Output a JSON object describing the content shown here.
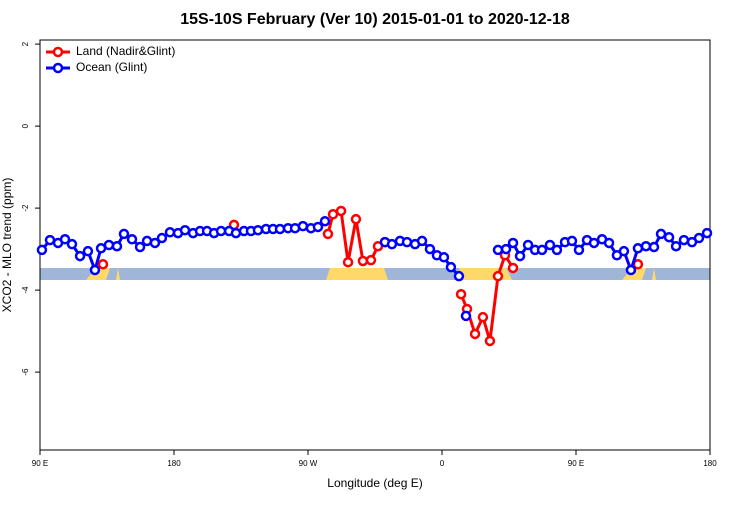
{
  "chart_data": {
    "type": "line",
    "title": "15S-10S February (Ver 10)   2015-01-01 to 2020-12-18",
    "x_label": "Longitude (deg E)",
    "y_label": "XCO2 - MLO trend (ppm)",
    "xlim": [
      90,
      540
    ],
    "ylim": [
      -7.9,
      2.1
    ],
    "xticks": [
      {
        "value": 90,
        "label": "90 E"
      },
      180,
      {
        "value": 270,
        "label": "90 W"
      },
      0,
      {
        "value": 450,
        "label": "90 E"
      },
      {
        "value": 540,
        "label": "180"
      }
    ],
    "yticks": [
      2,
      0,
      -2,
      -4,
      -6
    ],
    "legend": "top-left",
    "series": [
      {
        "name": "Land (Nadir&Glint)",
        "color": "#ff0000",
        "x": [
          132.3,
          null,
          220.3,
          null,
          283.4,
          286.8,
          292.2,
          296.9,
          302.2,
          306.9,
          312.3,
          317.0,
          321.7,
          null,
          372.8,
          376.8,
          382.2,
          387.5,
          392.2,
          397.6,
          402.3,
          407.7,
          null,
          491.6
        ],
        "values": [
          -3.37,
          null,
          -2.41,
          null,
          -2.63,
          -2.15,
          -2.07,
          -3.32,
          -2.27,
          -3.29,
          -3.27,
          -2.93,
          -2.83,
          null,
          -4.1,
          -4.46,
          -5.07,
          -4.66,
          -5.24,
          -3.66,
          -3.15,
          -3.46,
          null,
          -3.37
        ]
      },
      {
        "name": "Ocean (Glint)",
        "color": "#0000ff",
        "x": [
          91.3,
          96.7,
          102.1,
          106.8,
          111.5,
          116.9,
          122.2,
          126.9,
          131.0,
          136.3,
          141.7,
          146.4,
          151.8,
          157.2,
          161.9,
          167.2,
          171.9,
          177.3,
          182.7,
          187.4,
          192.8,
          197.5,
          202.2,
          206.9,
          211.6,
          217.0,
          221.6,
          227.0,
          231.7,
          236.4,
          241.8,
          246.5,
          251.2,
          256.6,
          261.3,
          266.6,
          272.0,
          276.7,
          281.4,
          null,
          321.7,
          326.4,
          331.8,
          336.5,
          341.9,
          346.6,
          351.9,
          356.6,
          361.3,
          366.0,
          371.4,
          null,
          376.1,
          null,
          397.6,
          403.0,
          407.7,
          412.4,
          417.8,
          422.5,
          427.2,
          432.5,
          437.2,
          442.6,
          447.3,
          452.0,
          457.4,
          462.1,
          467.5,
          472.2,
          477.5,
          482.2,
          486.9,
          491.6,
          497.0,
          502.4,
          507.1,
          512.5,
          517.2,
          522.5,
          527.9,
          532.6,
          538.0
        ],
        "values": [
          -3.02,
          -2.78,
          -2.85,
          -2.76,
          -2.88,
          -3.17,
          -3.05,
          -3.51,
          -2.98,
          -2.9,
          -2.93,
          -2.63,
          -2.76,
          -2.95,
          -2.8,
          -2.85,
          -2.73,
          -2.59,
          -2.61,
          -2.54,
          -2.61,
          -2.56,
          -2.56,
          -2.61,
          -2.56,
          -2.56,
          -2.61,
          -2.56,
          -2.56,
          -2.54,
          -2.51,
          -2.51,
          -2.51,
          -2.49,
          -2.49,
          -2.44,
          -2.49,
          -2.46,
          -2.32,
          null,
          -2.83,
          -2.88,
          -2.8,
          -2.83,
          -2.88,
          -2.8,
          -3.0,
          -3.15,
          -3.2,
          -3.44,
          -3.66,
          null,
          -4.63,
          null,
          -3.02,
          -3.0,
          -2.85,
          -3.17,
          -2.9,
          -3.02,
          -3.02,
          -2.9,
          -3.02,
          -2.83,
          -2.8,
          -3.02,
          -2.78,
          -2.85,
          -2.76,
          -2.85,
          -3.15,
          -3.05,
          -3.51,
          -2.98,
          -2.93,
          -2.95,
          -2.63,
          -2.71,
          -2.93,
          -2.78,
          -2.83,
          -2.73,
          -2.61
        ]
      }
    ]
  }
}
